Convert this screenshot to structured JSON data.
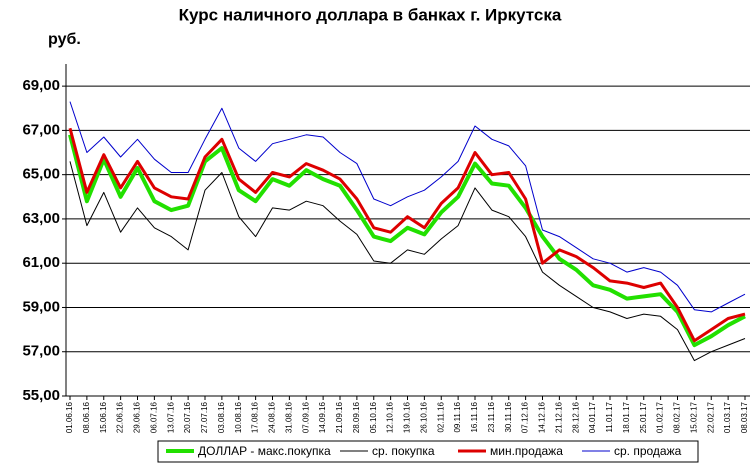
{
  "chart_data": {
    "type": "line",
    "title": "Курс наличного доллара  в банках г. Иркутска",
    "y_label": "руб.",
    "categories": [
      "01.06.16",
      "08.06.16",
      "15.06.16",
      "22.06.16",
      "29.06.16",
      "06.07.16",
      "13.07.16",
      "20.07.16",
      "27.07.16",
      "03.08.16",
      "10.08.16",
      "17.08.16",
      "24.08.16",
      "31.08.16",
      "07.09.16",
      "14.09.16",
      "21.09.16",
      "28.09.16",
      "05.10.16",
      "12.10.16",
      "19.10.16",
      "26.10.16",
      "02.11.16",
      "09.11.16",
      "16.11.16",
      "23.11.16",
      "30.11.16",
      "07.12.16",
      "14.12.16",
      "21.12.16",
      "28.12.16",
      "04.01.17",
      "11.01.17",
      "18.01.17",
      "25.01.17",
      "01.02.17",
      "08.02.17",
      "15.02.17",
      "22.02.17",
      "01.03.17",
      "08.03.17"
    ],
    "series": [
      {
        "name": "ДОЛЛАР - макс.покупка",
        "color": "#22e000",
        "values": [
          66.8,
          63.8,
          65.7,
          64.0,
          65.3,
          63.8,
          63.4,
          63.6,
          65.6,
          66.2,
          64.3,
          63.8,
          64.8,
          64.5,
          65.2,
          64.8,
          64.5,
          63.4,
          62.2,
          62.0,
          62.6,
          62.3,
          63.3,
          64.0,
          65.5,
          64.6,
          64.5,
          63.5,
          62.2,
          61.2,
          60.7,
          60.0,
          59.8,
          59.4,
          59.5,
          59.6,
          58.8,
          57.3,
          57.7,
          58.2,
          58.6
        ]
      },
      {
        "name": "ср. покупка",
        "color": "#000000",
        "values": [
          65.6,
          62.7,
          64.2,
          62.4,
          63.5,
          62.6,
          62.2,
          61.6,
          64.3,
          65.1,
          63.1,
          62.2,
          63.5,
          63.4,
          63.8,
          63.6,
          62.9,
          62.3,
          61.1,
          61.0,
          61.6,
          61.4,
          62.1,
          62.7,
          64.4,
          63.4,
          63.1,
          62.2,
          60.6,
          60.0,
          59.5,
          59.0,
          58.8,
          58.5,
          58.7,
          58.6,
          58.0,
          56.6,
          57.0,
          57.3,
          57.6
        ]
      },
      {
        "name": "мин.продажа",
        "color": "#dd0000",
        "values": [
          67.1,
          64.2,
          65.9,
          64.4,
          65.6,
          64.4,
          64.0,
          63.9,
          65.8,
          66.6,
          64.8,
          64.2,
          65.1,
          64.9,
          65.5,
          65.2,
          64.8,
          63.9,
          62.6,
          62.4,
          63.1,
          62.6,
          63.7,
          64.4,
          66.0,
          65.0,
          65.1,
          63.9,
          61.0,
          61.6,
          61.3,
          60.8,
          60.2,
          60.1,
          59.9,
          60.1,
          59.0,
          57.5,
          58.0,
          58.5,
          58.7
        ]
      },
      {
        "name": "ср. продажа",
        "color": "#0000cc",
        "values": [
          68.3,
          66.0,
          66.7,
          65.8,
          66.6,
          65.7,
          65.1,
          65.1,
          66.6,
          68.0,
          66.2,
          65.6,
          66.4,
          66.6,
          66.8,
          66.7,
          66.0,
          65.5,
          63.9,
          63.6,
          64.0,
          64.3,
          64.9,
          65.6,
          67.2,
          66.6,
          66.3,
          65.4,
          62.5,
          62.2,
          61.7,
          61.2,
          61.0,
          60.6,
          60.8,
          60.6,
          60.0,
          58.9,
          58.8,
          59.2,
          59.6
        ]
      }
    ],
    "ylim": [
      55,
      70
    ],
    "yticks": [
      {
        "value": 55,
        "label": "55,00"
      },
      {
        "value": 57,
        "label": "57,00"
      },
      {
        "value": 59,
        "label": "59,00"
      },
      {
        "value": 61,
        "label": "61,00"
      },
      {
        "value": 63,
        "label": "63,00"
      },
      {
        "value": 65,
        "label": "65,00"
      },
      {
        "value": 67,
        "label": "67,00"
      },
      {
        "value": 69,
        "label": "69,00"
      }
    ],
    "grid": true
  }
}
